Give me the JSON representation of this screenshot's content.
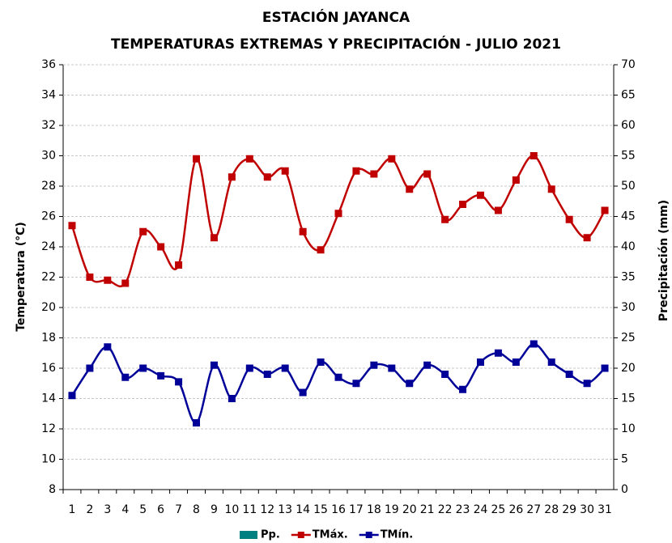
{
  "chart_data": {
    "type": "line",
    "title": "ESTACIÓN JAYANCA",
    "subtitle": "TEMPERATURAS  EXTREMAS Y PRECIPITACIÓN - JULIO 2021",
    "ylabel": "Temperatura (°C)",
    "y2label": "Precipitación  (mm)",
    "categories": [
      "1",
      "2",
      "3",
      "4",
      "5",
      "6",
      "7",
      "8",
      "9",
      "10",
      "11",
      "12",
      "13",
      "14",
      "15",
      "16",
      "17",
      "18",
      "19",
      "20",
      "21",
      "22",
      "23",
      "24",
      "25",
      "26",
      "27",
      "28",
      "29",
      "30",
      "31"
    ],
    "series": [
      {
        "name": "Pp.",
        "type": "bar",
        "axis": "y2",
        "color": "#008080",
        "values": [
          0,
          0,
          0,
          0,
          0,
          0,
          0,
          0,
          0,
          0,
          0,
          0,
          0,
          0,
          0,
          0,
          0,
          0,
          0,
          0,
          0,
          0,
          0,
          0,
          0,
          0,
          0,
          0,
          0,
          0,
          0
        ]
      },
      {
        "name": "TMáx.",
        "color": "#c00000",
        "values": [
          25.4,
          22.0,
          21.8,
          21.6,
          25.0,
          24.0,
          22.8,
          29.8,
          24.6,
          28.6,
          29.8,
          28.6,
          29.0,
          25.0,
          23.8,
          26.2,
          29.0,
          28.8,
          29.8,
          27.8,
          28.8,
          25.8,
          26.8,
          27.4,
          26.4,
          28.4,
          30.0,
          27.8,
          25.8,
          24.6,
          26.4
        ]
      },
      {
        "name": "TMín.",
        "color": "#000099",
        "values": [
          14.2,
          16.0,
          17.4,
          15.4,
          16.0,
          15.5,
          15.1,
          12.4,
          16.2,
          14.0,
          16.0,
          15.6,
          16.0,
          14.4,
          16.4,
          15.4,
          15.0,
          16.2,
          16.0,
          15.0,
          16.2,
          15.6,
          14.6,
          16.4,
          17.0,
          16.4,
          17.6,
          16.4,
          15.6,
          15.0,
          16.0
        ]
      }
    ],
    "ylim": [
      8,
      36
    ],
    "yticks": [
      8,
      10,
      12,
      14,
      16,
      18,
      20,
      22,
      24,
      26,
      28,
      30,
      32,
      34,
      36
    ],
    "y2lim": [
      0,
      70
    ],
    "y2ticks": [
      0,
      5,
      10,
      15,
      20,
      25,
      30,
      35,
      40,
      45,
      50,
      55,
      60,
      65,
      70
    ],
    "grid": true,
    "legend": "bottom"
  }
}
